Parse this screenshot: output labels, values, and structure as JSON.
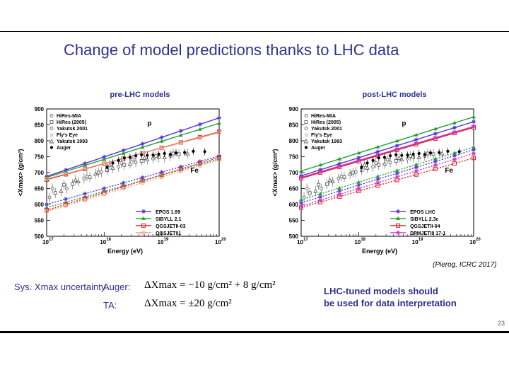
{
  "slide": {
    "title": "Change of model predictions thanks to LHC data",
    "credit": "(Pierog, ICRC 2017)",
    "page_number": "23",
    "sys_label": "Sys. Xmax uncertainty",
    "auger_label": "Auger:",
    "ta_label": "TA:",
    "auger_formula": "ΔXmax = −10 g/cm² + 8 g/cm²",
    "ta_formula": "ΔXmax = ±20 g/cm²",
    "note_line1": "LHC-tuned models should",
    "note_line2": "be used for data interpretation",
    "colors": {
      "title": "#2e3192"
    }
  },
  "chart_data": [
    {
      "type": "line",
      "title": "pre-LHC models",
      "xlabel": "Energy (eV)",
      "ylabel": "<Xmax> (g/cm²)",
      "xscale": "log",
      "xlim": [
        1e+17,
        1e+20
      ],
      "ylim": [
        500,
        900
      ],
      "x_ticks": [
        "10",
        "10",
        "10",
        "10"
      ],
      "x_tick_exponents": [
        "17",
        "18",
        "19",
        "20"
      ],
      "y_ticks": [
        "500",
        "550",
        "600",
        "650",
        "700",
        "750",
        "800",
        "850",
        "900"
      ],
      "label_proton": "p",
      "label_iron": "Fe",
      "data_legend": [
        "HiRes-MIA",
        "HiRes (2005)",
        "Yakutsk 2001",
        "Fly's Eye",
        "Yakutsk 1993",
        "Auger"
      ],
      "series": [
        {
          "name": "EPOS 1.99",
          "color": "#5533dd",
          "marker": "star",
          "p": [
            [
              17.0,
              688
            ],
            [
              20.0,
              872
            ]
          ],
          "fe": [
            [
              17.0,
              600
            ],
            [
              20.0,
              752
            ]
          ]
        },
        {
          "name": "SIBYLL 2.1",
          "color": "#22a033",
          "marker": "triangle",
          "p": [
            [
              17.0,
              685
            ],
            [
              20.0,
              855
            ]
          ],
          "fe": [
            [
              17.0,
              590
            ],
            [
              20.0,
              743
            ]
          ]
        },
        {
          "name": "QGSJETII-03",
          "color": "#dd2222",
          "marker": "square",
          "p": [
            [
              17.0,
              678
            ],
            [
              20.0,
              828
            ]
          ],
          "fe": [
            [
              17.0,
              582
            ],
            [
              20.0,
              748
            ]
          ]
        },
        {
          "name": "QGSJET01",
          "color": "#ee9988",
          "marker": "circle",
          "p": [
            [
              17.0,
              680
            ],
            [
              20.0,
              826
            ]
          ],
          "fe": [
            [
              17.0,
              578
            ],
            [
              20.0,
              740
            ]
          ]
        }
      ],
      "auger_points": [
        [
          18.05,
          717
        ],
        [
          18.15,
          730
        ],
        [
          18.25,
          738
        ],
        [
          18.35,
          746
        ],
        [
          18.45,
          748
        ],
        [
          18.55,
          753
        ],
        [
          18.65,
          756
        ],
        [
          18.75,
          754
        ],
        [
          18.85,
          755
        ],
        [
          18.95,
          758
        ],
        [
          19.05,
          760
        ],
        [
          19.15,
          757
        ],
        [
          19.25,
          762
        ],
        [
          19.4,
          763
        ],
        [
          19.55,
          767
        ],
        [
          19.75,
          766
        ]
      ],
      "other_points": [
        [
          17.05,
          622
        ],
        [
          17.15,
          636
        ],
        [
          17.25,
          642
        ],
        [
          17.35,
          650
        ],
        [
          17.45,
          664
        ],
        [
          17.55,
          672
        ],
        [
          17.65,
          682
        ],
        [
          17.75,
          686
        ],
        [
          17.85,
          696
        ],
        [
          17.95,
          702
        ],
        [
          18.05,
          708
        ],
        [
          18.15,
          715
        ],
        [
          18.25,
          718
        ],
        [
          18.35,
          724
        ],
        [
          18.45,
          728
        ],
        [
          18.55,
          732
        ],
        [
          18.65,
          737
        ],
        [
          18.75,
          741
        ],
        [
          18.85,
          744
        ],
        [
          18.95,
          748
        ],
        [
          19.05,
          748
        ],
        [
          19.15,
          752
        ],
        [
          19.3,
          758
        ],
        [
          19.45,
          760
        ],
        [
          17.1,
          650
        ],
        [
          17.3,
          662
        ],
        [
          17.5,
          676
        ],
        [
          17.7,
          688
        ],
        [
          17.9,
          700
        ],
        [
          18.1,
          724
        ],
        [
          18.3,
          730
        ],
        [
          18.5,
          741
        ],
        [
          18.7,
          746
        ],
        [
          18.9,
          752
        ],
        [
          19.2,
          760
        ]
      ]
    },
    {
      "type": "line",
      "title": "post-LHC models",
      "xlabel": "Energy (eV)",
      "ylabel": "<Xmax> (g/cm²)",
      "xscale": "log",
      "xlim": [
        1e+17,
        1e+20
      ],
      "ylim": [
        500,
        900
      ],
      "x_ticks": [
        "10",
        "10",
        "10",
        "10"
      ],
      "x_tick_exponents": [
        "17",
        "18",
        "19",
        "20"
      ],
      "y_ticks": [
        "500",
        "550",
        "600",
        "650",
        "700",
        "750",
        "800",
        "850",
        "900"
      ],
      "label_proton": "p",
      "label_iron": "Fe",
      "data_legend": [
        "HiRes-MIA",
        "HiRes (2005)",
        "Yakutsk 2001",
        "Fly's Eye",
        "Yakutsk 1993",
        "Auger"
      ],
      "series": [
        {
          "name": "EPOS LHC",
          "color": "#5533dd",
          "marker": "star",
          "p": [
            [
              17.0,
              690
            ],
            [
              20.0,
              860
            ]
          ],
          "fe": [
            [
              17.0,
              605
            ],
            [
              20.0,
              772
            ]
          ]
        },
        {
          "name": "SIBYLL 2.3c",
          "color": "#22a033",
          "marker": "triangle",
          "p": [
            [
              17.0,
              705
            ],
            [
              20.0,
              875
            ]
          ],
          "fe": [
            [
              17.0,
              615
            ],
            [
              20.0,
              780
            ]
          ]
        },
        {
          "name": "QGSJETII-04",
          "color": "#dd2222",
          "marker": "square",
          "p": [
            [
              17.0,
              682
            ],
            [
              20.0,
              842
            ]
          ],
          "fe": [
            [
              17.0,
              590
            ],
            [
              20.0,
              746
            ]
          ]
        },
        {
          "name": "DPMJETIII 17-1",
          "color": "#cc33cc",
          "marker": "star",
          "p": [
            [
              17.0,
              685
            ],
            [
              20.0,
              845
            ]
          ],
          "fe": [
            [
              17.0,
              595
            ],
            [
              20.0,
              760
            ]
          ]
        }
      ],
      "auger_points": [
        [
          18.05,
          717
        ],
        [
          18.15,
          730
        ],
        [
          18.25,
          738
        ],
        [
          18.35,
          746
        ],
        [
          18.45,
          748
        ],
        [
          18.55,
          753
        ],
        [
          18.65,
          756
        ],
        [
          18.75,
          754
        ],
        [
          18.85,
          755
        ],
        [
          18.95,
          758
        ],
        [
          19.05,
          760
        ],
        [
          19.15,
          757
        ],
        [
          19.25,
          762
        ],
        [
          19.4,
          763
        ],
        [
          19.55,
          767
        ],
        [
          19.75,
          766
        ]
      ],
      "other_points": [
        [
          17.05,
          622
        ],
        [
          17.15,
          636
        ],
        [
          17.25,
          642
        ],
        [
          17.35,
          650
        ],
        [
          17.45,
          664
        ],
        [
          17.55,
          672
        ],
        [
          17.65,
          682
        ],
        [
          17.75,
          686
        ],
        [
          17.85,
          696
        ],
        [
          17.95,
          702
        ],
        [
          18.05,
          708
        ],
        [
          18.15,
          715
        ],
        [
          18.25,
          718
        ],
        [
          18.35,
          724
        ],
        [
          18.45,
          728
        ],
        [
          18.55,
          732
        ],
        [
          18.65,
          737
        ],
        [
          18.75,
          741
        ],
        [
          18.85,
          744
        ],
        [
          18.95,
          748
        ],
        [
          19.05,
          748
        ],
        [
          19.15,
          752
        ],
        [
          19.3,
          758
        ],
        [
          19.45,
          760
        ],
        [
          17.1,
          650
        ],
        [
          17.3,
          662
        ],
        [
          17.5,
          676
        ],
        [
          17.7,
          688
        ],
        [
          17.9,
          700
        ],
        [
          18.1,
          724
        ],
        [
          18.3,
          730
        ],
        [
          18.5,
          741
        ],
        [
          18.7,
          746
        ],
        [
          18.9,
          752
        ],
        [
          19.2,
          760
        ]
      ]
    }
  ]
}
